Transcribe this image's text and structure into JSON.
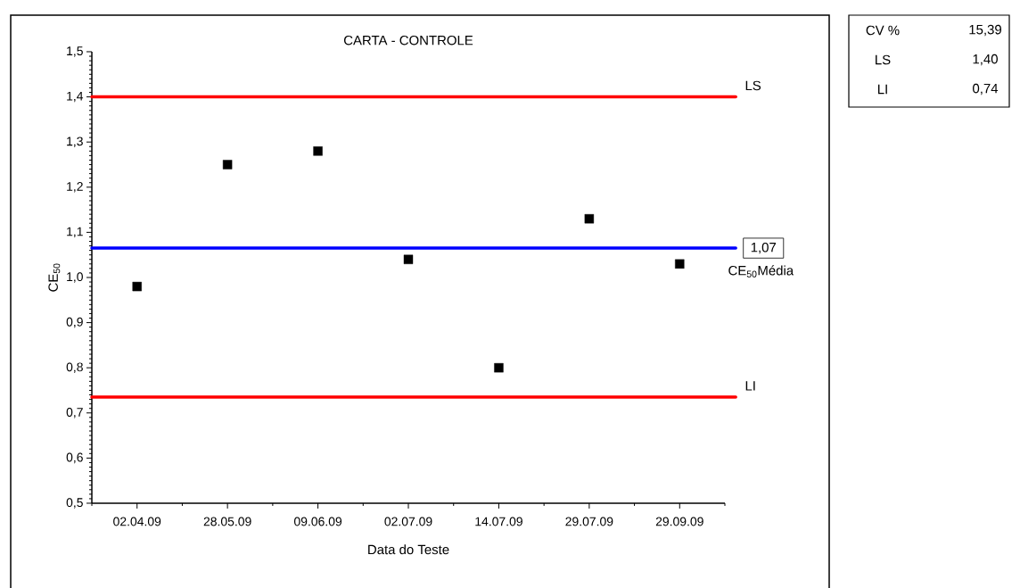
{
  "chart_data": {
    "type": "scatter",
    "title": "CARTA - CONTROLE",
    "xlabel": "Data do Teste",
    "ylabel": "CE$_{50}$",
    "categories": [
      "02.04.09",
      "28.05.09",
      "09.06.09",
      "02.07.09",
      "14.07.09",
      "29.07.09",
      "29.09.09"
    ],
    "series": [
      {
        "color": "#000000",
        "values": [
          0.98,
          1.25,
          1.28,
          1.04,
          0.8,
          1.13,
          1.03
        ]
      }
    ],
    "ylim": [
      0.5,
      1.5
    ],
    "yticks": [
      {
        "value": 0.5,
        "label": "0,5"
      },
      {
        "value": 0.6,
        "label": "0,6"
      },
      {
        "value": 0.7,
        "label": "0,7"
      },
      {
        "value": 0.8,
        "label": "0,8"
      },
      {
        "value": 0.9,
        "label": "0,9"
      },
      {
        "value": 1.0,
        "label": "1,0"
      },
      {
        "value": 1.1,
        "label": "1,1"
      },
      {
        "value": 1.2,
        "label": "1,2"
      },
      {
        "value": 1.3,
        "label": "1,3"
      },
      {
        "value": 1.4,
        "label": "1,4"
      },
      {
        "value": 1.5,
        "label": "1,5"
      }
    ],
    "ref_lines": [
      {
        "axis": "y",
        "value": 1.4,
        "label": "LS",
        "color": "#ff0000"
      },
      {
        "axis": "y",
        "value": 1.065,
        "label": "1,07",
        "color": "#0000ff"
      },
      {
        "axis": "y",
        "value": 0.735,
        "label": "LI",
        "color": "#ff0000"
      }
    ],
    "annotations": [
      "CE$_{50}$Média",
      "CV %",
      "15,39",
      "LS",
      "1,40",
      "LI",
      "0,74"
    ],
    "marker": "square",
    "grid": false
  }
}
